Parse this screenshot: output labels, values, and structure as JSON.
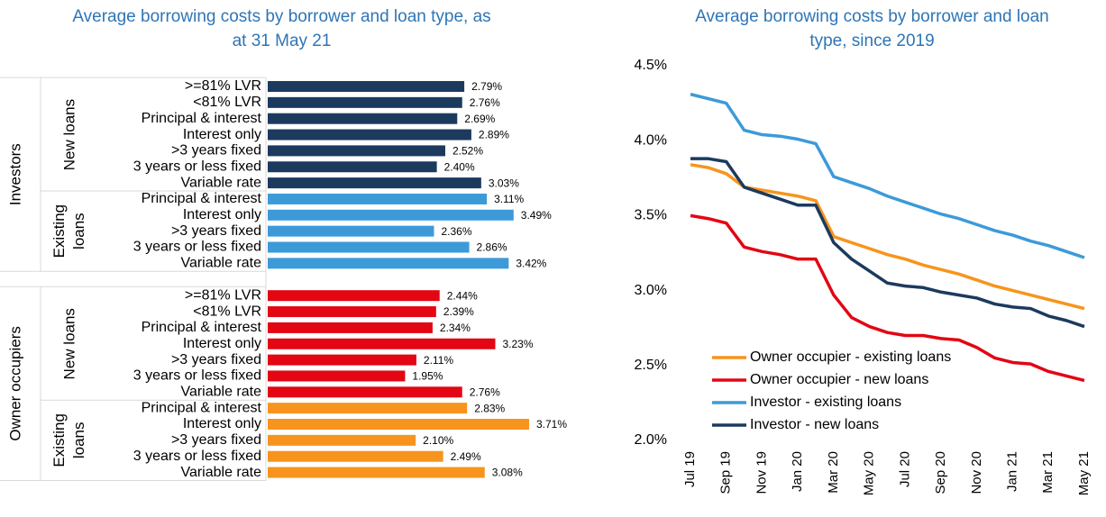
{
  "chart_data": [
    {
      "type": "grouped-bar",
      "orientation": "horizontal",
      "title": "Average borrowing costs by borrower and loan type, as at 31 May 21",
      "groups": [
        {
          "name": "Investors",
          "subgroups": [
            {
              "name": "New loans",
              "color": "#1c3a5e",
              "categories": [
                ">=81% LVR",
                "<81% LVR",
                "Principal & interest",
                "Interest only",
                ">3 years fixed",
                "3 years or less fixed",
                "Variable rate"
              ],
              "values": [
                2.79,
                2.76,
                2.69,
                2.89,
                2.52,
                2.4,
                3.03
              ],
              "value_labels": [
                "2.79%",
                "2.76%",
                "2.69%",
                "2.89%",
                "2.52%",
                "2.40%",
                "3.03%"
              ]
            },
            {
              "name": "Existing loans",
              "color": "#3d9ad8",
              "categories": [
                "Principal & interest",
                "Interest only",
                ">3 years fixed",
                "3 years or less fixed",
                "Variable rate"
              ],
              "values": [
                3.11,
                3.49,
                2.36,
                2.86,
                3.42
              ],
              "value_labels": [
                "3.11%",
                "3.49%",
                "2.36%",
                "2.86%",
                "3.42%"
              ]
            }
          ]
        },
        {
          "name": "Owner occupiers",
          "subgroups": [
            {
              "name": "New loans",
              "color": "#e30613",
              "categories": [
                ">=81% LVR",
                "<81% LVR",
                "Principal & interest",
                "Interest only",
                ">3 years fixed",
                "3 years or less fixed",
                "Variable rate"
              ],
              "values": [
                2.44,
                2.39,
                2.34,
                3.23,
                2.11,
                1.95,
                2.76
              ],
              "value_labels": [
                "2.44%",
                "2.39%",
                "2.34%",
                "3.23%",
                "2.11%",
                "1.95%",
                "2.76%"
              ]
            },
            {
              "name": "Existing loans",
              "color": "#f7941d",
              "categories": [
                "Principal & interest",
                "Interest only",
                ">3 years fixed",
                "3 years or less fixed",
                "Variable rate"
              ],
              "values": [
                2.83,
                3.71,
                2.1,
                2.49,
                3.08
              ],
              "value_labels": [
                "2.83%",
                "3.71%",
                "2.10%",
                "2.49%",
                "3.08%"
              ]
            }
          ]
        }
      ]
    },
    {
      "type": "line",
      "title": "Average borrowing costs by borrower and loan type, since 2019",
      "categories": [
        "Jul 19",
        null,
        "Sep 19",
        null,
        "Nov 19",
        null,
        "Jan 20",
        null,
        "Mar 20",
        null,
        "May 20",
        null,
        "Jul 20",
        null,
        "Sep 20",
        null,
        "Nov 20",
        null,
        "Jan 21",
        null,
        "Mar 21",
        null,
        "May 21"
      ],
      "ylim": [
        2.0,
        4.5
      ],
      "yticks": [
        {
          "value": 2.0,
          "label": "2.0%"
        },
        {
          "value": 2.5,
          "label": "2.5%"
        },
        {
          "value": 3.0,
          "label": "3.0%"
        },
        {
          "value": 3.5,
          "label": "3.5%"
        },
        {
          "value": 4.0,
          "label": "4.0%"
        },
        {
          "value": 4.5,
          "label": "4.5%"
        }
      ],
      "series": [
        {
          "name": "Owner occupier - existing loans",
          "color": "#f7941d",
          "values": [
            3.84,
            3.82,
            3.78,
            3.69,
            3.67,
            3.65,
            3.63,
            3.6,
            3.36,
            3.32,
            3.28,
            3.24,
            3.21,
            3.17,
            3.14,
            3.11,
            3.07,
            3.03,
            3.0,
            2.97,
            2.94,
            2.91,
            2.88
          ]
        },
        {
          "name": "Owner occupier - new loans",
          "color": "#e30613",
          "values": [
            3.5,
            3.48,
            3.45,
            3.29,
            3.26,
            3.24,
            3.21,
            3.21,
            2.97,
            2.82,
            2.76,
            2.72,
            2.7,
            2.7,
            2.68,
            2.67,
            2.62,
            2.55,
            2.52,
            2.51,
            2.46,
            2.43,
            2.4
          ]
        },
        {
          "name": "Investor - existing loans",
          "color": "#3d9ad8",
          "values": [
            4.31,
            4.28,
            4.25,
            4.07,
            4.04,
            4.03,
            4.01,
            3.98,
            3.76,
            3.72,
            3.68,
            3.63,
            3.59,
            3.55,
            3.51,
            3.48,
            3.44,
            3.4,
            3.37,
            3.33,
            3.3,
            3.26,
            3.22
          ]
        },
        {
          "name": "Investor - new loans",
          "color": "#1c3a5e",
          "values": [
            3.88,
            3.88,
            3.86,
            3.69,
            3.65,
            3.61,
            3.57,
            3.57,
            3.32,
            3.21,
            3.13,
            3.05,
            3.03,
            3.02,
            2.99,
            2.97,
            2.95,
            2.91,
            2.89,
            2.88,
            2.83,
            2.8,
            2.76
          ]
        }
      ]
    }
  ]
}
